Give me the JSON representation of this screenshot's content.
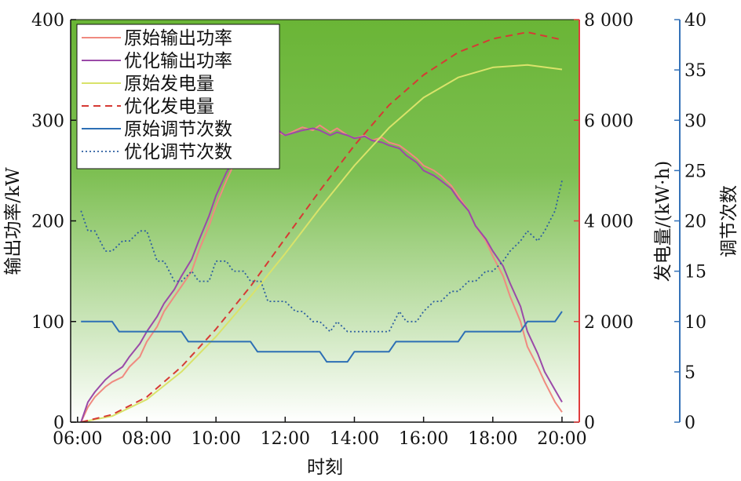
{
  "chart_data": {
    "type": "line",
    "xlabel": "时刻",
    "ylabel_left": "输出功率/kW",
    "ylabel_right1": "发电量/(kW·h)",
    "ylabel_right2": "调节次数",
    "x_ticks": [
      "06:00",
      "08:00",
      "10:00",
      "12:00",
      "14:00",
      "16:00",
      "18:00",
      "20:00"
    ],
    "x_range_hours": [
      5.8,
      20.5
    ],
    "y_left": {
      "range": [
        0,
        400
      ],
      "ticks": [
        "0",
        "100",
        "200",
        "300",
        "400"
      ]
    },
    "y_right1": {
      "range": [
        0,
        8000
      ],
      "ticks": [
        "0",
        "2 000",
        "4 000",
        "6 000",
        "8 000"
      ]
    },
    "y_right2": {
      "range": [
        0,
        40
      ],
      "ticks": [
        "0",
        "5",
        "10",
        "15",
        "20",
        "25",
        "30",
        "35",
        "40"
      ]
    },
    "background": {
      "top": "#6ab536",
      "bottom": "#ffffff"
    },
    "legend": {
      "placement": "top-left",
      "entries": [
        "原始输出功率",
        "优化输出功率",
        "原始发电量",
        "优化发电量",
        "原始调节次数",
        "优化调节次数"
      ]
    },
    "series": [
      {
        "name": "原始输出功率",
        "axis": "left",
        "color": "#f08a80",
        "dash": "solid",
        "x": [
          6.1,
          6.3,
          6.5,
          6.8,
          7.0,
          7.3,
          7.5,
          7.8,
          8.0,
          8.3,
          8.5,
          8.8,
          9.0,
          9.3,
          9.5,
          9.8,
          10.0,
          10.3,
          10.5,
          10.8,
          11.0,
          11.3,
          11.5,
          11.8,
          12.0,
          12.3,
          12.5,
          12.8,
          13.0,
          13.3,
          13.5,
          13.8,
          14.0,
          14.3,
          14.5,
          14.8,
          15.0,
          15.3,
          15.5,
          15.8,
          16.0,
          16.3,
          16.5,
          16.8,
          17.0,
          17.3,
          17.5,
          17.8,
          18.0,
          18.3,
          18.5,
          18.8,
          19.0,
          19.3,
          19.5,
          19.8,
          20.0
        ],
        "y": [
          0,
          15,
          25,
          35,
          40,
          45,
          55,
          65,
          80,
          95,
          110,
          125,
          135,
          150,
          170,
          195,
          215,
          240,
          255,
          270,
          275,
          285,
          290,
          288,
          285,
          290,
          293,
          290,
          295,
          288,
          292,
          285,
          282,
          285,
          280,
          283,
          278,
          275,
          270,
          262,
          255,
          250,
          245,
          235,
          225,
          210,
          195,
          180,
          165,
          145,
          125,
          100,
          75,
          55,
          40,
          20,
          10
        ]
      },
      {
        "name": "优化输出功率",
        "axis": "left",
        "color": "#9b4aa8",
        "dash": "solid",
        "x": [
          6.1,
          6.3,
          6.5,
          6.8,
          7.0,
          7.3,
          7.5,
          7.8,
          8.0,
          8.3,
          8.5,
          8.8,
          9.0,
          9.3,
          9.5,
          9.8,
          10.0,
          10.3,
          10.5,
          10.8,
          11.0,
          11.3,
          11.5,
          11.8,
          12.0,
          12.3,
          12.5,
          12.8,
          13.0,
          13.3,
          13.5,
          13.8,
          14.0,
          14.3,
          14.5,
          14.8,
          15.0,
          15.3,
          15.5,
          15.8,
          16.0,
          16.3,
          16.5,
          16.8,
          17.0,
          17.3,
          17.5,
          17.8,
          18.0,
          18.3,
          18.5,
          18.8,
          19.0,
          19.3,
          19.5,
          19.8,
          20.0
        ],
        "y": [
          0,
          20,
          30,
          42,
          48,
          55,
          65,
          78,
          90,
          105,
          118,
          132,
          145,
          162,
          180,
          205,
          225,
          248,
          260,
          272,
          275,
          282,
          285,
          290,
          285,
          288,
          290,
          292,
          290,
          285,
          288,
          285,
          282,
          284,
          280,
          278,
          275,
          272,
          265,
          258,
          250,
          245,
          240,
          232,
          222,
          210,
          195,
          182,
          170,
          155,
          138,
          115,
          90,
          68,
          50,
          32,
          20
        ]
      },
      {
        "name": "原始发电量",
        "axis": "right1",
        "color": "#d9e36a",
        "dash": "solid",
        "x": [
          6.1,
          7.0,
          8.0,
          9.0,
          10.0,
          11.0,
          12.0,
          13.0,
          14.0,
          15.0,
          16.0,
          17.0,
          18.0,
          19.0,
          20.0
        ],
        "y": [
          0,
          120,
          450,
          1000,
          1700,
          2500,
          3350,
          4250,
          5100,
          5850,
          6450,
          6850,
          7050,
          7100,
          7010
        ]
      },
      {
        "name": "优化发电量",
        "axis": "right1",
        "color": "#d63a34",
        "dash": "dashed",
        "x": [
          6.1,
          7.0,
          8.0,
          9.0,
          10.0,
          11.0,
          12.0,
          13.0,
          14.0,
          15.0,
          16.0,
          17.0,
          18.0,
          19.0,
          20.0
        ],
        "y": [
          0,
          150,
          500,
          1100,
          1850,
          2700,
          3650,
          4600,
          5500,
          6300,
          6900,
          7350,
          7620,
          7750,
          7600
        ]
      },
      {
        "name": "原始调节次数",
        "axis": "right2",
        "color": "#2d6fb5",
        "dash": "solid",
        "x": [
          6.1,
          7.0,
          7.2,
          9.0,
          9.2,
          11.0,
          11.2,
          13.0,
          13.2,
          13.8,
          14.0,
          15.0,
          15.2,
          17.0,
          17.2,
          18.8,
          19.0,
          19.8,
          20.0
        ],
        "y": [
          10,
          10,
          9,
          9,
          8,
          8,
          7,
          7,
          6,
          6,
          7,
          7,
          8,
          8,
          9,
          9,
          10,
          10,
          11
        ]
      },
      {
        "name": "优化调节次数",
        "axis": "right2",
        "color": "#2d5fa0",
        "dash": "dotted",
        "x": [
          6.1,
          6.3,
          6.5,
          6.8,
          7.0,
          7.3,
          7.5,
          7.8,
          8.0,
          8.3,
          8.5,
          8.8,
          9.0,
          9.3,
          9.5,
          9.8,
          10.0,
          10.3,
          10.5,
          10.8,
          11.0,
          11.3,
          11.5,
          11.8,
          12.0,
          12.3,
          12.5,
          12.8,
          13.0,
          13.3,
          13.5,
          13.8,
          14.0,
          14.3,
          14.5,
          14.8,
          15.0,
          15.3,
          15.5,
          15.8,
          16.0,
          16.3,
          16.5,
          16.8,
          17.0,
          17.3,
          17.5,
          17.8,
          18.0,
          18.3,
          18.5,
          18.8,
          19.0,
          19.3,
          19.5,
          19.8,
          20.0
        ],
        "y": [
          21,
          19,
          19,
          17,
          17,
          18,
          18,
          19,
          19,
          16,
          16,
          14,
          14,
          15,
          14,
          14,
          16,
          16,
          15,
          15,
          14,
          14,
          12,
          12,
          12,
          11,
          11,
          10,
          10,
          9,
          10,
          9,
          9,
          9,
          9,
          9,
          9,
          11,
          10,
          10,
          11,
          12,
          12,
          13,
          13,
          14,
          14,
          15,
          15,
          16,
          17,
          18,
          19,
          18,
          19,
          21,
          24
        ]
      }
    ]
  }
}
